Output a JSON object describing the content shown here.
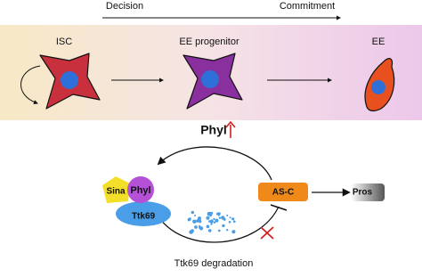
{
  "header": {
    "start": "Decision",
    "end": "Commitment"
  },
  "stages": [
    {
      "label": "ISC"
    },
    {
      "label": "EE progenitor"
    },
    {
      "label": "EE"
    }
  ],
  "regulator": {
    "label": "Phyl"
  },
  "complex": {
    "sina": "Sina",
    "phyl": "Phyl",
    "ttk69": "Ttk69"
  },
  "nodes": {
    "asc": "AS-C",
    "pros": "Pros"
  },
  "caption": "Ttk69 degradation"
}
